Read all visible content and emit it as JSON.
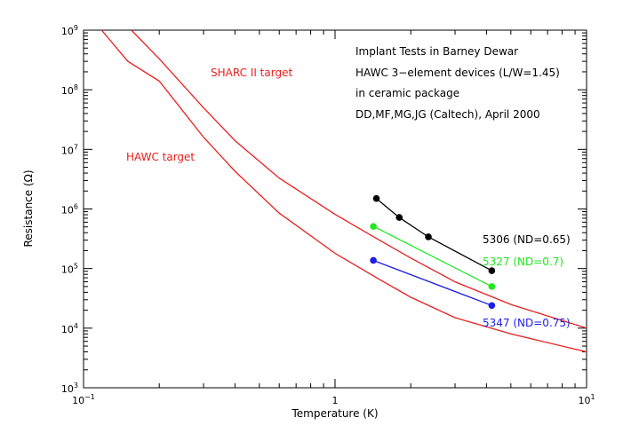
{
  "chart_data": {
    "type": "line",
    "x_scale": "log",
    "y_scale": "log",
    "xlim": [
      0.1,
      10
    ],
    "ylim": [
      1000,
      1000000000
    ],
    "xlabel": "Temperature (K)",
    "ylabel": "Resistance (Ω)",
    "x_ticks": [
      {
        "value": 0.1,
        "base": "10",
        "exp": "−1"
      },
      {
        "value": 1,
        "base": "1",
        "exp": ""
      },
      {
        "value": 10,
        "base": "10",
        "exp": "1"
      }
    ],
    "y_ticks": [
      {
        "value": 1000,
        "base": "10",
        "exp": "3"
      },
      {
        "value": 10000,
        "base": "10",
        "exp": "4"
      },
      {
        "value": 100000,
        "base": "10",
        "exp": "5"
      },
      {
        "value": 1000000,
        "base": "10",
        "exp": "6"
      },
      {
        "value": 10000000,
        "base": "10",
        "exp": "7"
      },
      {
        "value": 100000000,
        "base": "10",
        "exp": "8"
      },
      {
        "value": 1000000000,
        "base": "10",
        "exp": "9"
      }
    ],
    "grid": false,
    "annotations": [
      "Implant Tests in Barney Dewar",
      "HAWC 3−element devices (L/W=1.45)",
      "in ceramic package",
      "DD,MF,MG,JG (Caltech), April 2000"
    ],
    "series": [
      {
        "name": "SHARC II target",
        "color": "#e8201e",
        "markers": false,
        "x": [
          0.155,
          0.2,
          0.3,
          0.4,
          0.6,
          1.0,
          1.5,
          2.0,
          3.0,
          5.0,
          10.0
        ],
        "y": [
          1000000000,
          330000000,
          50000000,
          14000000,
          3300000,
          810000,
          300000,
          150000,
          60000,
          25000,
          10000
        ]
      },
      {
        "name": "HAWC target",
        "color": "#e8201e",
        "markers": false,
        "x": [
          0.118,
          0.15,
          0.2,
          0.3,
          0.4,
          0.6,
          1.0,
          1.5,
          2.0,
          3.0,
          5.0,
          10.0
        ],
        "y": [
          1000000000,
          300000000,
          140000000,
          16000000,
          4300000,
          850000,
          180000,
          66000,
          33000,
          15000,
          8000,
          4000
        ]
      },
      {
        "name": "5306 (ND=0.65)",
        "color": "#000000",
        "markers": true,
        "x": [
          1.46,
          1.8,
          2.35,
          4.2
        ],
        "y": [
          1500000,
          720000,
          340000,
          92000
        ]
      },
      {
        "name": "5327 (ND=0.7)",
        "color": "#1ee81e",
        "markers": true,
        "x": [
          1.42,
          4.2
        ],
        "y": [
          510000,
          50000
        ]
      },
      {
        "name": "5347 (ND=0.75)",
        "color": "#1e1ee8",
        "markers": true,
        "x": [
          1.42,
          4.2
        ],
        "y": [
          137000,
          24000
        ]
      }
    ]
  }
}
